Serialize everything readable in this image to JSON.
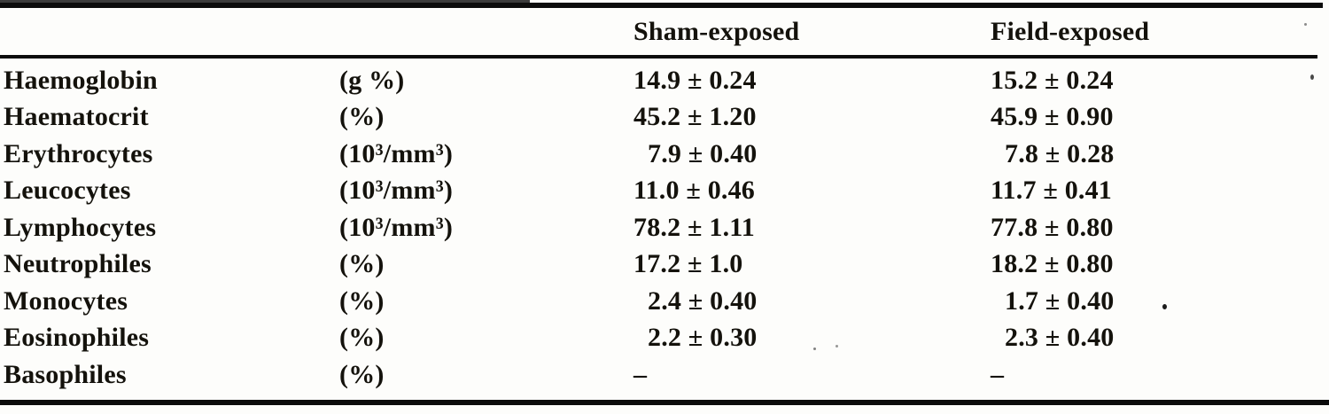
{
  "colors": {
    "ink": "#14120c",
    "paper": "#fdfdfb",
    "rule": "#0c0c0c"
  },
  "table": {
    "columns": [
      "",
      "",
      "Sham-exposed",
      "Field-exposed"
    ],
    "rows": [
      {
        "name": "Haemoglobin",
        "unit": "(g %)",
        "sham": "14.9 ± 0.24",
        "field": "15.2 ± 0.24"
      },
      {
        "name": "Haematocrit",
        "unit": "(%)",
        "sham": "45.2 ± 1.20",
        "field": "45.9 ± 0.90"
      },
      {
        "name": "Erythrocytes",
        "unit": "(10³/mm³)",
        "sham": "7.9 ± 0.40",
        "field": "7.8 ± 0.28"
      },
      {
        "name": "Leucocytes",
        "unit": "(10³/mm³)",
        "sham": "11.0 ± 0.46",
        "field": "11.7 ± 0.41"
      },
      {
        "name": "Lymphocytes",
        "unit": "(10³/mm³)",
        "sham": "78.2 ± 1.11",
        "field": "77.8 ± 0.80"
      },
      {
        "name": "Neutrophiles",
        "unit": "(%)",
        "sham": "17.2 ± 1.0",
        "field": "18.2 ± 0.80"
      },
      {
        "name": "Monocytes",
        "unit": "(%)",
        "sham": "2.4 ± 0.40",
        "field": "1.7 ± 0.40"
      },
      {
        "name": "Eosinophiles",
        "unit": "(%)",
        "sham": "2.2 ± 0.30",
        "field": "2.3 ± 0.40"
      },
      {
        "name": "Basophiles",
        "unit": "(%)",
        "sham": "–",
        "field": "–"
      }
    ]
  }
}
